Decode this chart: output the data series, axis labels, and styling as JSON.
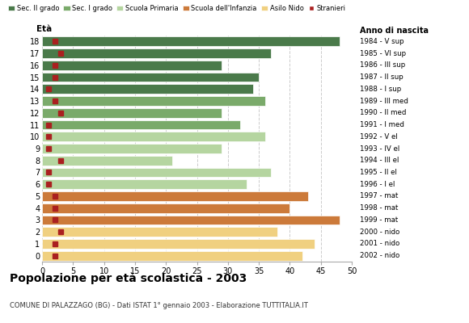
{
  "ages": [
    18,
    17,
    16,
    15,
    14,
    13,
    12,
    11,
    10,
    9,
    8,
    7,
    6,
    5,
    4,
    3,
    2,
    1,
    0
  ],
  "bar_values": [
    48,
    37,
    29,
    35,
    34,
    36,
    29,
    32,
    36,
    29,
    21,
    37,
    33,
    43,
    40,
    48,
    38,
    44,
    42
  ],
  "stranieri": [
    2,
    3,
    2,
    2,
    1,
    2,
    3,
    1,
    1,
    1,
    3,
    1,
    1,
    2,
    2,
    2,
    3,
    2,
    2
  ],
  "right_labels": [
    "1984 - V sup",
    "1985 - VI sup",
    "1986 - III sup",
    "1987 - II sup",
    "1988 - I sup",
    "1989 - III med",
    "1990 - II med",
    "1991 - I med",
    "1992 - V el",
    "1993 - IV el",
    "1994 - III el",
    "1995 - II el",
    "1996 - I el",
    "1997 - mat",
    "1998 - mat",
    "1999 - mat",
    "2000 - nido",
    "2001 - nido",
    "2002 - nido"
  ],
  "bar_colors": [
    "#4a7a4a",
    "#4a7a4a",
    "#4a7a4a",
    "#4a7a4a",
    "#4a7a4a",
    "#7aaa6a",
    "#7aaa6a",
    "#7aaa6a",
    "#b5d5a0",
    "#b5d5a0",
    "#b5d5a0",
    "#b5d5a0",
    "#b5d5a0",
    "#cc7a3a",
    "#cc7a3a",
    "#cc7a3a",
    "#f0d080",
    "#f0d080",
    "#f0d080"
  ],
  "legend_labels": [
    "Sec. II grado",
    "Sec. I grado",
    "Scuola Primaria",
    "Scuola dell'Infanzia",
    "Asilo Nido",
    "Stranieri"
  ],
  "legend_colors": [
    "#4a7a4a",
    "#7aaa6a",
    "#b5d5a0",
    "#cc7a3a",
    "#f0d080",
    "#aa2020"
  ],
  "title": "Popolazione per età scolastica - 2003",
  "subtitle": "COMUNE DI PALAZZAGO (BG) - Dati ISTAT 1° gennaio 2003 - Elaborazione TUTTITALIA.IT",
  "xlabel_left": "Età",
  "xlabel_right": "Anno di nascita",
  "xlim": [
    0,
    50
  ],
  "stranieri_color": "#aa2020",
  "bar_height": 0.8,
  "bg_color": "#ffffff",
  "grid_color": "#cccccc"
}
